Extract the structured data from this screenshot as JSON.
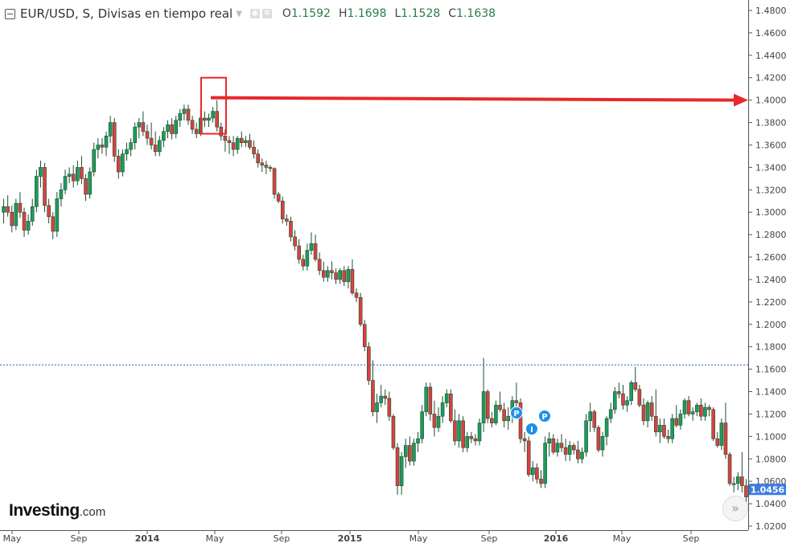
{
  "header": {
    "title": "EUR/USD, S, Divisas en tiempo real",
    "open_key": "O",
    "open": "1.1592",
    "high_key": "H",
    "high": "1.1698",
    "low_key": "L",
    "low": "1.1528",
    "close_key": "C",
    "close": "1.1638",
    "icons": [
      "collapse-icon",
      "dropdown-caret-icon",
      "eye-icon",
      "gear-icon"
    ]
  },
  "logo": {
    "brand": "Investing",
    "suffix": ".com"
  },
  "scroll_button": {
    "icon": "double-chevron-right-icon",
    "label": "»"
  },
  "colors": {
    "up": "#1f9b5a",
    "down": "#d9413f",
    "wick": "#1e4d33",
    "price_tag": "#3d7be0",
    "current_line": "#2e5ea8",
    "annotation": "#e8282b",
    "marker": "#1e90e8"
  },
  "markers": [
    {
      "label": "P"
    },
    {
      "label": "P"
    },
    {
      "label": "I"
    }
  ],
  "chart_data": {
    "type": "candlestick",
    "title": "",
    "ylim": [
      1.02,
      1.48
    ],
    "y_ticks": [
      "1.4800",
      "1.4600",
      "1.4400",
      "1.4200",
      "1.4000",
      "1.3800",
      "1.3600",
      "1.3400",
      "1.3200",
      "1.3000",
      "1.2800",
      "1.2600",
      "1.2400",
      "1.2200",
      "1.2000",
      "1.1800",
      "1.1600",
      "1.1400",
      "1.1200",
      "1.1000",
      "1.0800",
      "1.0600",
      "1.0400",
      "1.0200"
    ],
    "x_ticks": [
      {
        "label": "May",
        "bold": false
      },
      {
        "label": "Sep",
        "bold": false
      },
      {
        "label": "2014",
        "bold": true
      },
      {
        "label": "May",
        "bold": false
      },
      {
        "label": "Sep",
        "bold": false
      },
      {
        "label": "2015",
        "bold": true
      },
      {
        "label": "May",
        "bold": false
      },
      {
        "label": "Sep",
        "bold": false
      },
      {
        "label": "2016",
        "bold": true
      },
      {
        "label": "May",
        "bold": false
      },
      {
        "label": "Sep",
        "bold": false
      }
    ],
    "current_price": "1.0456",
    "reference_line": 1.1638,
    "grid": false,
    "annotation": {
      "highlight_from": 1.37,
      "highlight_to": 1.42,
      "arrow_level": 1.4
    },
    "candles_ohlc": [
      [
        1.3,
        1.312,
        1.29,
        1.305
      ],
      [
        1.305,
        1.315,
        1.296,
        1.3
      ],
      [
        1.3,
        1.306,
        1.282,
        1.288
      ],
      [
        1.288,
        1.312,
        1.284,
        1.308
      ],
      [
        1.308,
        1.318,
        1.295,
        1.3
      ],
      [
        1.3,
        1.304,
        1.278,
        1.284
      ],
      [
        1.284,
        1.298,
        1.28,
        1.292
      ],
      [
        1.292,
        1.312,
        1.288,
        1.305
      ],
      [
        1.305,
        1.338,
        1.3,
        1.332
      ],
      [
        1.332,
        1.346,
        1.322,
        1.34
      ],
      [
        1.34,
        1.344,
        1.3,
        1.306
      ],
      [
        1.306,
        1.312,
        1.29,
        1.296
      ],
      [
        1.296,
        1.3,
        1.276,
        1.283
      ],
      [
        1.283,
        1.318,
        1.278,
        1.312
      ],
      [
        1.312,
        1.326,
        1.305,
        1.32
      ],
      [
        1.32,
        1.338,
        1.316,
        1.332
      ],
      [
        1.332,
        1.34,
        1.326,
        1.334
      ],
      [
        1.334,
        1.342,
        1.322,
        1.328
      ],
      [
        1.328,
        1.346,
        1.324,
        1.34
      ],
      [
        1.34,
        1.35,
        1.325,
        1.33
      ],
      [
        1.33,
        1.334,
        1.31,
        1.316
      ],
      [
        1.316,
        1.34,
        1.312,
        1.336
      ],
      [
        1.336,
        1.362,
        1.332,
        1.356
      ],
      [
        1.356,
        1.366,
        1.348,
        1.36
      ],
      [
        1.36,
        1.366,
        1.352,
        1.358
      ],
      [
        1.358,
        1.372,
        1.35,
        1.368
      ],
      [
        1.368,
        1.386,
        1.362,
        1.38
      ],
      [
        1.38,
        1.384,
        1.345,
        1.35
      ],
      [
        1.35,
        1.356,
        1.33,
        1.336
      ],
      [
        1.336,
        1.356,
        1.332,
        1.352
      ],
      [
        1.352,
        1.362,
        1.346,
        1.356
      ],
      [
        1.356,
        1.366,
        1.35,
        1.362
      ],
      [
        1.362,
        1.38,
        1.356,
        1.376
      ],
      [
        1.376,
        1.384,
        1.366,
        1.38
      ],
      [
        1.38,
        1.39,
        1.368,
        1.372
      ],
      [
        1.372,
        1.378,
        1.36,
        1.366
      ],
      [
        1.366,
        1.38,
        1.356,
        1.36
      ],
      [
        1.36,
        1.372,
        1.35,
        1.354
      ],
      [
        1.354,
        1.368,
        1.35,
        1.364
      ],
      [
        1.364,
        1.376,
        1.358,
        1.372
      ],
      [
        1.372,
        1.382,
        1.366,
        1.378
      ],
      [
        1.378,
        1.384,
        1.365,
        1.37
      ],
      [
        1.37,
        1.386,
        1.366,
        1.382
      ],
      [
        1.382,
        1.392,
        1.376,
        1.388
      ],
      [
        1.388,
        1.396,
        1.382,
        1.392
      ],
      [
        1.392,
        1.396,
        1.378,
        1.382
      ],
      [
        1.382,
        1.386,
        1.37,
        1.374
      ],
      [
        1.374,
        1.38,
        1.366,
        1.37
      ],
      [
        1.37,
        1.392,
        1.368,
        1.384
      ],
      [
        1.384,
        1.39,
        1.376,
        1.382
      ],
      [
        1.382,
        1.388,
        1.376,
        1.384
      ],
      [
        1.384,
        1.394,
        1.38,
        1.39
      ],
      [
        1.39,
        1.4,
        1.372,
        1.376
      ],
      [
        1.376,
        1.38,
        1.364,
        1.368
      ],
      [
        1.368,
        1.374,
        1.354,
        1.364
      ],
      [
        1.364,
        1.368,
        1.352,
        1.362
      ],
      [
        1.362,
        1.368,
        1.35,
        1.356
      ],
      [
        1.356,
        1.368,
        1.352,
        1.366
      ],
      [
        1.366,
        1.372,
        1.358,
        1.362
      ],
      [
        1.362,
        1.368,
        1.358,
        1.364
      ],
      [
        1.364,
        1.37,
        1.356,
        1.358
      ],
      [
        1.358,
        1.364,
        1.348,
        1.352
      ],
      [
        1.352,
        1.356,
        1.34,
        1.344
      ],
      [
        1.344,
        1.348,
        1.336,
        1.342
      ],
      [
        1.342,
        1.346,
        1.334,
        1.34
      ],
      [
        1.34,
        1.342,
        1.336,
        1.339
      ],
      [
        1.339,
        1.34,
        1.312,
        1.316
      ],
      [
        1.316,
        1.318,
        1.308,
        1.31
      ],
      [
        1.31,
        1.314,
        1.29,
        1.294
      ],
      [
        1.294,
        1.298,
        1.288,
        1.292
      ],
      [
        1.292,
        1.296,
        1.274,
        1.278
      ],
      [
        1.278,
        1.284,
        1.266,
        1.27
      ],
      [
        1.27,
        1.276,
        1.254,
        1.258
      ],
      [
        1.258,
        1.262,
        1.248,
        1.252
      ],
      [
        1.252,
        1.272,
        1.248,
        1.266
      ],
      [
        1.266,
        1.282,
        1.262,
        1.272
      ],
      [
        1.272,
        1.28,
        1.256,
        1.258
      ],
      [
        1.258,
        1.264,
        1.244,
        1.248
      ],
      [
        1.248,
        1.256,
        1.238,
        1.242
      ],
      [
        1.242,
        1.252,
        1.238,
        1.248
      ],
      [
        1.248,
        1.256,
        1.24,
        1.246
      ],
      [
        1.246,
        1.25,
        1.236,
        1.24
      ],
      [
        1.24,
        1.25,
        1.236,
        1.248
      ],
      [
        1.248,
        1.252,
        1.234,
        1.238
      ],
      [
        1.238,
        1.252,
        1.232,
        1.249
      ],
      [
        1.249,
        1.258,
        1.226,
        1.228
      ],
      [
        1.228,
        1.232,
        1.22,
        1.224
      ],
      [
        1.224,
        1.228,
        1.198,
        1.2
      ],
      [
        1.2,
        1.204,
        1.176,
        1.18
      ],
      [
        1.18,
        1.184,
        1.146,
        1.15
      ],
      [
        1.15,
        1.168,
        1.118,
        1.122
      ],
      [
        1.122,
        1.138,
        1.112,
        1.13
      ],
      [
        1.13,
        1.146,
        1.126,
        1.136
      ],
      [
        1.136,
        1.142,
        1.128,
        1.134
      ],
      [
        1.134,
        1.14,
        1.114,
        1.118
      ],
      [
        1.118,
        1.12,
        1.088,
        1.09
      ],
      [
        1.09,
        1.094,
        1.048,
        1.056
      ],
      [
        1.056,
        1.086,
        1.048,
        1.082
      ],
      [
        1.082,
        1.098,
        1.072,
        1.092
      ],
      [
        1.092,
        1.1,
        1.074,
        1.078
      ],
      [
        1.078,
        1.098,
        1.074,
        1.094
      ],
      [
        1.094,
        1.104,
        1.086,
        1.098
      ],
      [
        1.098,
        1.128,
        1.094,
        1.122
      ],
      [
        1.122,
        1.148,
        1.118,
        1.144
      ],
      [
        1.144,
        1.148,
        1.114,
        1.12
      ],
      [
        1.12,
        1.132,
        1.1,
        1.108
      ],
      [
        1.108,
        1.126,
        1.104,
        1.118
      ],
      [
        1.118,
        1.136,
        1.112,
        1.13
      ],
      [
        1.13,
        1.142,
        1.126,
        1.138
      ],
      [
        1.138,
        1.142,
        1.112,
        1.114
      ],
      [
        1.114,
        1.124,
        1.092,
        1.096
      ],
      [
        1.096,
        1.12,
        1.09,
        1.114
      ],
      [
        1.114,
        1.118,
        1.086,
        1.09
      ],
      [
        1.09,
        1.104,
        1.086,
        1.1
      ],
      [
        1.1,
        1.104,
        1.094,
        1.098
      ],
      [
        1.098,
        1.102,
        1.092,
        1.096
      ],
      [
        1.096,
        1.116,
        1.092,
        1.112
      ],
      [
        1.112,
        1.17,
        1.104,
        1.14
      ],
      [
        1.14,
        1.142,
        1.112,
        1.116
      ],
      [
        1.116,
        1.122,
        1.108,
        1.112
      ],
      [
        1.112,
        1.132,
        1.11,
        1.128
      ],
      [
        1.128,
        1.14,
        1.122,
        1.124
      ],
      [
        1.124,
        1.13,
        1.108,
        1.114
      ],
      [
        1.114,
        1.126,
        1.106,
        1.118
      ],
      [
        1.118,
        1.136,
        1.112,
        1.132
      ],
      [
        1.132,
        1.148,
        1.126,
        1.13
      ],
      [
        1.13,
        1.134,
        1.094,
        1.098
      ],
      [
        1.098,
        1.104,
        1.086,
        1.096
      ],
      [
        1.096,
        1.1,
        1.064,
        1.066
      ],
      [
        1.066,
        1.078,
        1.06,
        1.072
      ],
      [
        1.072,
        1.076,
        1.058,
        1.062
      ],
      [
        1.062,
        1.07,
        1.054,
        1.058
      ],
      [
        1.058,
        1.1,
        1.054,
        1.094
      ],
      [
        1.094,
        1.104,
        1.082,
        1.098
      ],
      [
        1.098,
        1.102,
        1.084,
        1.086
      ],
      [
        1.086,
        1.098,
        1.082,
        1.094
      ],
      [
        1.094,
        1.102,
        1.086,
        1.09
      ],
      [
        1.09,
        1.098,
        1.078,
        1.084
      ],
      [
        1.084,
        1.096,
        1.078,
        1.092
      ],
      [
        1.092,
        1.094,
        1.084,
        1.088
      ],
      [
        1.088,
        1.096,
        1.076,
        1.08
      ],
      [
        1.08,
        1.09,
        1.076,
        1.086
      ],
      [
        1.086,
        1.12,
        1.082,
        1.114
      ],
      [
        1.114,
        1.13,
        1.104,
        1.122
      ],
      [
        1.122,
        1.124,
        1.104,
        1.108
      ],
      [
        1.108,
        1.11,
        1.086,
        1.088
      ],
      [
        1.088,
        1.104,
        1.082,
        1.1
      ],
      [
        1.1,
        1.118,
        1.092,
        1.116
      ],
      [
        1.116,
        1.13,
        1.112,
        1.124
      ],
      [
        1.124,
        1.144,
        1.12,
        1.14
      ],
      [
        1.14,
        1.148,
        1.134,
        1.138
      ],
      [
        1.138,
        1.146,
        1.124,
        1.128
      ],
      [
        1.128,
        1.136,
        1.122,
        1.132
      ],
      [
        1.132,
        1.15,
        1.128,
        1.148
      ],
      [
        1.148,
        1.162,
        1.14,
        1.142
      ],
      [
        1.142,
        1.146,
        1.126,
        1.128
      ],
      [
        1.128,
        1.134,
        1.11,
        1.114
      ],
      [
        1.114,
        1.132,
        1.108,
        1.13
      ],
      [
        1.13,
        1.136,
        1.114,
        1.118
      ],
      [
        1.118,
        1.142,
        1.1,
        1.104
      ],
      [
        1.104,
        1.116,
        1.094,
        1.11
      ],
      [
        1.11,
        1.116,
        1.098,
        1.1
      ],
      [
        1.1,
        1.106,
        1.094,
        1.098
      ],
      [
        1.098,
        1.12,
        1.094,
        1.116
      ],
      [
        1.116,
        1.128,
        1.108,
        1.11
      ],
      [
        1.11,
        1.124,
        1.106,
        1.12
      ],
      [
        1.12,
        1.134,
        1.116,
        1.132
      ],
      [
        1.132,
        1.136,
        1.118,
        1.12
      ],
      [
        1.12,
        1.126,
        1.114,
        1.122
      ],
      [
        1.122,
        1.13,
        1.118,
        1.128
      ],
      [
        1.128,
        1.134,
        1.114,
        1.118
      ],
      [
        1.118,
        1.13,
        1.114,
        1.126
      ],
      [
        1.126,
        1.128,
        1.118,
        1.124
      ],
      [
        1.124,
        1.126,
        1.096,
        1.098
      ],
      [
        1.098,
        1.104,
        1.09,
        1.092
      ],
      [
        1.092,
        1.116,
        1.088,
        1.112
      ],
      [
        1.112,
        1.13,
        1.08,
        1.084
      ],
      [
        1.084,
        1.086,
        1.056,
        1.058
      ],
      [
        1.058,
        1.064,
        1.05,
        1.058
      ],
      [
        1.058,
        1.068,
        1.052,
        1.064
      ],
      [
        1.064,
        1.086,
        1.05,
        1.056
      ],
      [
        1.056,
        1.062,
        1.036,
        1.046
      ]
    ]
  }
}
